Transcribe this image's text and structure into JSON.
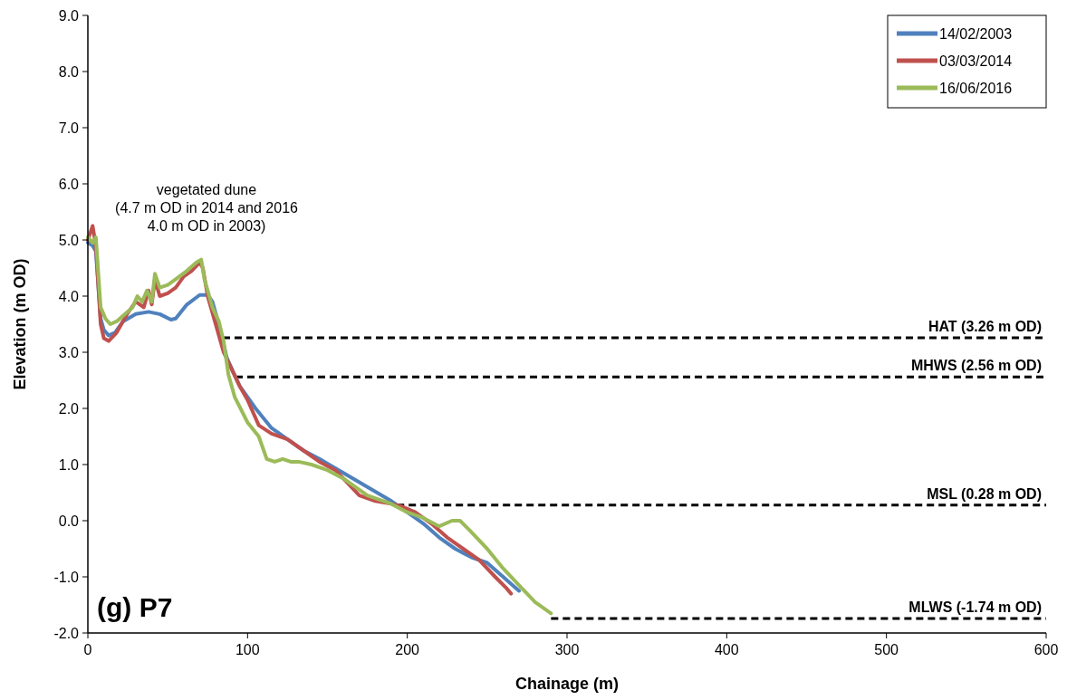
{
  "chart_data": {
    "type": "line",
    "xlabel": "Chainage (m)",
    "ylabel": "Elevation (m OD)",
    "xlim": [
      0,
      600
    ],
    "xticks": [
      0,
      100,
      200,
      300,
      400,
      500,
      600
    ],
    "ylim": [
      -2,
      9
    ],
    "yticks": [
      {
        "value": -2,
        "label": "-2.0"
      },
      {
        "value": -1,
        "label": "-1.0"
      },
      {
        "value": 0,
        "label": "0.0"
      },
      {
        "value": 1,
        "label": "1.0"
      },
      {
        "value": 2,
        "label": "2.0"
      },
      {
        "value": 3,
        "label": "3.0"
      },
      {
        "value": 4,
        "label": "4.0"
      },
      {
        "value": 5,
        "label": "5.0"
      },
      {
        "value": 6,
        "label": "6.0"
      },
      {
        "value": 7,
        "label": "7.0"
      },
      {
        "value": 8,
        "label": "8.0"
      },
      {
        "value": 9,
        "label": "9.0"
      }
    ],
    "legend": "top right",
    "grid": false,
    "marker": "none",
    "line_style": "solid",
    "series": [
      {
        "name": "14/02/2003",
        "color": "#4f81bd",
        "x": [
          0,
          3,
          5,
          8,
          10,
          13,
          17,
          22,
          30,
          38,
          45,
          52,
          55,
          62,
          70,
          75,
          78,
          82,
          87,
          95,
          105,
          115,
          125,
          135,
          145,
          160,
          175,
          190,
          200,
          210,
          220,
          230,
          240,
          250,
          260,
          268,
          270
        ],
        "values": [
          4.95,
          4.9,
          4.8,
          3.6,
          3.4,
          3.3,
          3.35,
          3.55,
          3.68,
          3.72,
          3.68,
          3.58,
          3.6,
          3.85,
          4.02,
          4.02,
          3.9,
          3.5,
          2.9,
          2.4,
          2.0,
          1.65,
          1.45,
          1.25,
          1.1,
          0.85,
          0.6,
          0.35,
          0.15,
          -0.05,
          -0.3,
          -0.5,
          -0.65,
          -0.75,
          -1.0,
          -1.2,
          -1.25
        ]
      },
      {
        "name": "03/03/2014",
        "color": "#c0504d",
        "x": [
          0,
          3,
          5,
          8,
          10,
          13,
          18,
          25,
          30,
          35,
          38,
          40,
          42,
          45,
          50,
          55,
          60,
          65,
          70,
          72,
          75,
          80,
          85,
          95,
          100,
          107,
          115,
          125,
          135,
          145,
          155,
          165,
          170,
          180,
          190,
          197,
          205,
          215,
          225,
          235,
          245,
          255,
          262,
          265
        ],
        "values": [
          5.0,
          5.25,
          4.9,
          3.5,
          3.25,
          3.2,
          3.35,
          3.7,
          3.9,
          3.8,
          4.1,
          3.85,
          4.3,
          4.0,
          4.05,
          4.15,
          4.35,
          4.45,
          4.6,
          4.5,
          4.0,
          3.5,
          3.0,
          2.4,
          2.15,
          1.7,
          1.55,
          1.45,
          1.25,
          1.05,
          0.9,
          0.6,
          0.45,
          0.35,
          0.3,
          0.25,
          0.15,
          -0.05,
          -0.3,
          -0.5,
          -0.7,
          -1.0,
          -1.2,
          -1.3
        ]
      },
      {
        "name": "16/06/2016",
        "color": "#9bbb59",
        "x": [
          0,
          3,
          5,
          8,
          11,
          14,
          18,
          22,
          28,
          31,
          34,
          37,
          40,
          42,
          45,
          50,
          55,
          62,
          68,
          71,
          73,
          78,
          82,
          85,
          88,
          92,
          100,
          107,
          112,
          117,
          122,
          127,
          132,
          140,
          150,
          160,
          165,
          175,
          190,
          200,
          210,
          220,
          228,
          233,
          240,
          250,
          260,
          270,
          280,
          290
        ],
        "values": [
          5.05,
          4.95,
          5.05,
          3.8,
          3.6,
          3.5,
          3.55,
          3.65,
          3.8,
          4.0,
          3.9,
          4.1,
          3.9,
          4.4,
          4.15,
          4.2,
          4.3,
          4.45,
          4.6,
          4.65,
          4.3,
          3.8,
          3.55,
          3.2,
          2.6,
          2.2,
          1.75,
          1.5,
          1.1,
          1.05,
          1.1,
          1.05,
          1.05,
          1.0,
          0.9,
          0.75,
          0.65,
          0.45,
          0.3,
          0.15,
          0.05,
          -0.1,
          0.0,
          0.0,
          -0.2,
          -0.5,
          -0.85,
          -1.15,
          -1.45,
          -1.65
        ]
      }
    ],
    "ref_lines": [
      {
        "axis": "y",
        "value": 3.26,
        "label": "HAT (3.26 m OD)",
        "color": "#000000",
        "line_style": "dashed"
      },
      {
        "axis": "y",
        "value": 2.56,
        "label": "MHWS (2.56 m OD)",
        "color": "#000000",
        "line_style": "dashed"
      },
      {
        "axis": "y",
        "value": 0.28,
        "label": "MSL (0.28 m OD)",
        "color": "#000000",
        "line_style": "dashed"
      },
      {
        "axis": "y",
        "value": -1.74,
        "label": "MLWS (-1.74 m OD)",
        "color": "#000000",
        "line_style": "dashed"
      }
    ],
    "annotations": [
      "vegetated dune\n(4.7 m OD in 2014 and 2016\n4.0 m OD in 2003)",
      "(g) P7"
    ]
  }
}
